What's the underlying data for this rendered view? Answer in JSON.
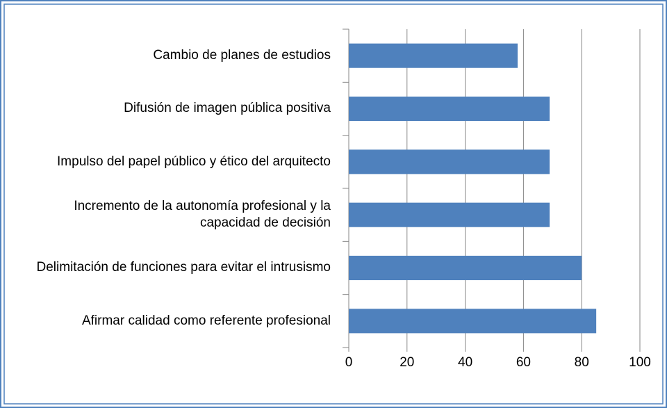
{
  "chart_data": {
    "type": "barh",
    "categories": [
      "Cambio de planes de estudios",
      "Difusión de imagen pública positiva",
      "Impulso del papel público y ético del arquitecto",
      "Incremento de la autonomía profesional y la capacidad de decisión",
      "Delimitación de funciones para evitar el intrusismo",
      "Afirmar calidad como referente profesional"
    ],
    "values": [
      58,
      69,
      69,
      69,
      80,
      85
    ],
    "color": "#4f81bd",
    "xlim": [
      0,
      100
    ],
    "xticks": [
      0,
      20,
      40,
      60,
      80,
      100
    ],
    "grid": true
  }
}
